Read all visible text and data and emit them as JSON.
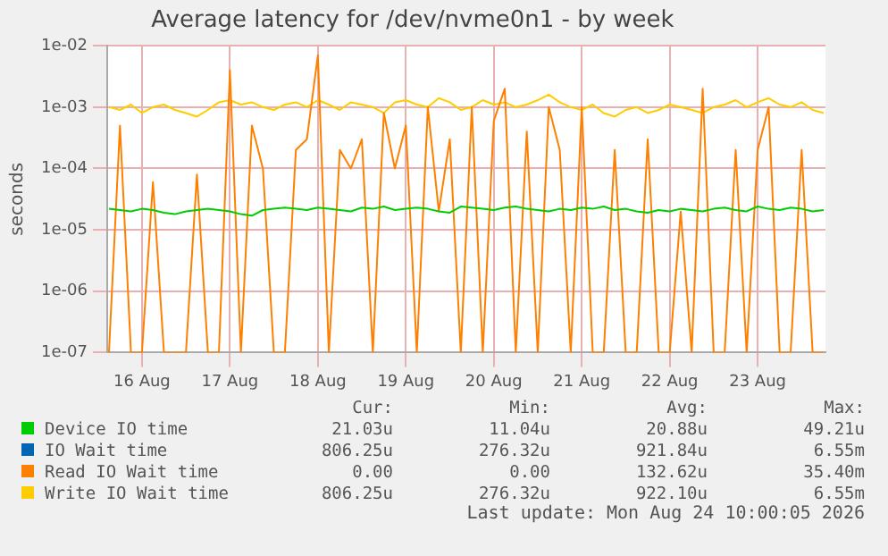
{
  "chart_data": {
    "type": "line",
    "title": "Average latency for /dev/nvme0n1 - by week",
    "ylabel": "seconds",
    "x": [
      "2026-08-16T03:00",
      "2026-08-16T06:00",
      "2026-08-16T09:00",
      "2026-08-16T12:00",
      "2026-08-16T15:00",
      "2026-08-16T18:00",
      "2026-08-16T21:00",
      "2026-08-17T00:00",
      "2026-08-17T03:00",
      "2026-08-17T06:00",
      "2026-08-17T09:00",
      "2026-08-17T12:00",
      "2026-08-17T15:00",
      "2026-08-17T18:00",
      "2026-08-17T21:00",
      "2026-08-18T00:00",
      "2026-08-18T03:00",
      "2026-08-18T06:00",
      "2026-08-18T09:00",
      "2026-08-18T12:00",
      "2026-08-18T15:00",
      "2026-08-18T18:00",
      "2026-08-18T21:00",
      "2026-08-19T00:00",
      "2026-08-19T03:00",
      "2026-08-19T06:00",
      "2026-08-19T09:00",
      "2026-08-19T12:00",
      "2026-08-19T15:00",
      "2026-08-19T18:00",
      "2026-08-19T21:00",
      "2026-08-20T00:00",
      "2026-08-20T03:00",
      "2026-08-20T06:00",
      "2026-08-20T09:00",
      "2026-08-20T12:00",
      "2026-08-20T15:00",
      "2026-08-20T18:00",
      "2026-08-20T21:00",
      "2026-08-21T00:00",
      "2026-08-21T03:00",
      "2026-08-21T06:00",
      "2026-08-21T09:00",
      "2026-08-21T12:00",
      "2026-08-21T15:00",
      "2026-08-21T18:00",
      "2026-08-21T21:00",
      "2026-08-22T00:00",
      "2026-08-22T03:00",
      "2026-08-22T06:00",
      "2026-08-22T09:00",
      "2026-08-22T12:00",
      "2026-08-22T15:00",
      "2026-08-22T18:00",
      "2026-08-22T21:00",
      "2026-08-23T00:00",
      "2026-08-23T03:00",
      "2026-08-23T06:00",
      "2026-08-23T09:00",
      "2026-08-23T12:00",
      "2026-08-23T15:00",
      "2026-08-23T18:00",
      "2026-08-23T21:00",
      "2026-08-24T00:00",
      "2026-08-24T03:00",
      "2026-08-24T06:00"
    ],
    "series": [
      {
        "name": "Device IO time",
        "color": "#00cc00",
        "values": [
          2.2e-05,
          2.1e-05,
          2e-05,
          2.2e-05,
          2.1e-05,
          1.9e-05,
          1.8e-05,
          2e-05,
          2.1e-05,
          2.2e-05,
          2.1e-05,
          2e-05,
          1.8e-05,
          1.7e-05,
          2.1e-05,
          2.2e-05,
          2.3e-05,
          2.2e-05,
          2.1e-05,
          2.3e-05,
          2.2e-05,
          2.1e-05,
          2e-05,
          2.3e-05,
          2.2e-05,
          2.4e-05,
          2.1e-05,
          2.2e-05,
          2.3e-05,
          2.2e-05,
          2e-05,
          1.9e-05,
          2.4e-05,
          2.3e-05,
          2.2e-05,
          2.1e-05,
          2.3e-05,
          2.4e-05,
          2.2e-05,
          2.1e-05,
          2e-05,
          2.2e-05,
          2.1e-05,
          2.3e-05,
          2.2e-05,
          2.4e-05,
          2.1e-05,
          2.2e-05,
          2e-05,
          1.9e-05,
          2.1e-05,
          2e-05,
          2.2e-05,
          2.1e-05,
          2e-05,
          2.2e-05,
          2.3e-05,
          2.1e-05,
          2e-05,
          2.4e-05,
          2.2e-05,
          2.1e-05,
          2.3e-05,
          2.2e-05,
          2e-05,
          2.1e-05
        ]
      },
      {
        "name": "IO Wait time",
        "color": "#0066b3",
        "values": [
          null,
          null,
          null,
          null,
          null,
          null,
          null,
          null,
          null,
          null,
          null,
          null,
          null,
          null,
          null,
          null,
          null,
          null,
          null,
          null,
          null,
          null,
          null,
          null,
          null,
          null,
          null,
          null,
          null,
          null,
          null,
          null,
          null,
          null,
          null,
          null,
          null,
          null,
          null,
          null,
          null,
          null,
          null,
          null,
          null,
          null,
          null,
          null,
          null,
          null,
          null,
          null,
          null,
          null,
          null,
          null,
          null,
          null,
          null,
          null,
          null,
          null,
          null,
          null,
          null,
          null
        ]
      },
      {
        "name": "Read IO Wait time",
        "color": "#ff8000",
        "values": [
          1e-07,
          0.0005,
          1e-07,
          1e-07,
          6e-05,
          1e-07,
          1e-07,
          1e-07,
          8e-05,
          1e-07,
          1e-07,
          0.004,
          1e-07,
          0.0005,
          0.0001,
          1e-07,
          1e-07,
          0.0002,
          0.0003,
          0.007,
          1e-07,
          0.0002,
          0.0001,
          0.0003,
          1e-07,
          0.0008,
          0.0001,
          0.0005,
          1e-07,
          0.001,
          2e-05,
          0.0003,
          1e-07,
          0.001,
          1e-07,
          0.0006,
          0.002,
          1e-07,
          0.0004,
          1e-07,
          0.001,
          0.0002,
          1e-07,
          0.001,
          1e-07,
          1e-07,
          0.0002,
          1e-07,
          1e-07,
          0.0003,
          1e-07,
          1e-07,
          2e-05,
          1e-07,
          0.002,
          1e-07,
          1e-07,
          0.0002,
          1e-07,
          0.0002,
          0.001,
          1e-07,
          1e-07,
          0.0002,
          1e-07,
          1e-07
        ]
      },
      {
        "name": "Write IO Wait time",
        "color": "#ffcc00",
        "values": [
          0.001,
          0.0009,
          0.0011,
          0.0008,
          0.001,
          0.0011,
          0.0009,
          0.0008,
          0.0007,
          0.0009,
          0.0012,
          0.0013,
          0.0011,
          0.0012,
          0.001,
          0.0009,
          0.0011,
          0.0012,
          0.001,
          0.0013,
          0.0011,
          0.0009,
          0.0012,
          0.0011,
          0.001,
          0.0008,
          0.0012,
          0.0013,
          0.0011,
          0.001,
          0.0014,
          0.0012,
          0.0009,
          0.001,
          0.0013,
          0.0011,
          0.0012,
          0.001,
          0.0011,
          0.0013,
          0.0016,
          0.0012,
          0.001,
          0.0009,
          0.0011,
          0.0008,
          0.0007,
          0.0009,
          0.001,
          0.0008,
          0.0009,
          0.0011,
          0.001,
          0.0009,
          0.0008,
          0.001,
          0.0011,
          0.0013,
          0.001,
          0.0012,
          0.0014,
          0.0011,
          0.001,
          0.0012,
          0.0009,
          0.0008
        ]
      }
    ],
    "xlim": [
      "2026-08-16T02:30",
      "2026-08-24T06:30"
    ],
    "xticks": [
      {
        "value": "2026-08-16T12:00",
        "label": "16 Aug"
      },
      {
        "value": "2026-08-17T12:00",
        "label": "17 Aug"
      },
      {
        "value": "2026-08-18T12:00",
        "label": "18 Aug"
      },
      {
        "value": "2026-08-19T12:00",
        "label": "19 Aug"
      },
      {
        "value": "2026-08-20T12:00",
        "label": "20 Aug"
      },
      {
        "value": "2026-08-21T12:00",
        "label": "21 Aug"
      },
      {
        "value": "2026-08-22T12:00",
        "label": "22 Aug"
      },
      {
        "value": "2026-08-23T12:00",
        "label": "23 Aug"
      }
    ],
    "ylim": [
      1e-07,
      0.01
    ],
    "yticks": [
      {
        "value": 1e-07,
        "label": "1e-07"
      },
      {
        "value": 1e-06,
        "label": "1e-06"
      },
      {
        "value": 1e-05,
        "label": "1e-05"
      },
      {
        "value": 0.0001,
        "label": "1e-04"
      },
      {
        "value": 0.001,
        "label": "1e-03"
      },
      {
        "value": 0.01,
        "label": "1e-02"
      }
    ],
    "log": "y",
    "grid": true,
    "legend": "bottom",
    "line_style": "solid",
    "annotations": [
      "Cur:",
      "Min:",
      "Avg:",
      "Max:",
      "21.03u",
      "11.04u",
      "20.88u",
      "49.21u",
      "806.25u",
      "276.32u",
      "921.84u",
      "6.55m",
      "0.00",
      "0.00",
      "132.62u",
      "35.40m",
      "806.25u",
      "276.32u",
      "922.10u",
      "6.55m",
      "Last update: Mon Aug 24 10:00:05 2026"
    ]
  }
}
